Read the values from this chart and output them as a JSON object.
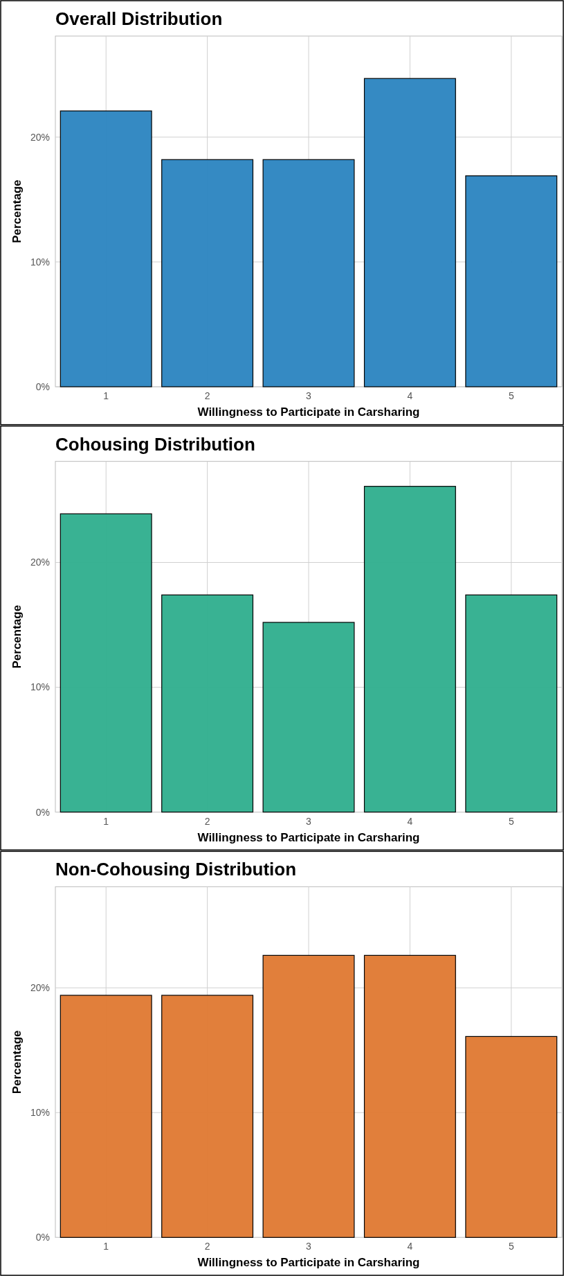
{
  "chart_data": [
    {
      "type": "bar",
      "title": "Overall Distribution",
      "xlabel": "Willingness to Participate in Carsharing",
      "ylabel": "Percentage",
      "categories": [
        "1",
        "2",
        "3",
        "4",
        "5"
      ],
      "values": [
        22.1,
        18.2,
        18.2,
        24.7,
        16.9
      ],
      "color": "#2e86c1",
      "ylim": [
        0,
        28.1
      ],
      "yticks": [
        {
          "value": 0,
          "label": "0%"
        },
        {
          "value": 10,
          "label": "10%"
        },
        {
          "value": 20,
          "label": "20%"
        }
      ],
      "grid": true
    },
    {
      "type": "bar",
      "title": "Cohousing Distribution",
      "xlabel": "Willingness to Participate in Carsharing",
      "ylabel": "Percentage",
      "categories": [
        "1",
        "2",
        "3",
        "4",
        "5"
      ],
      "values": [
        23.9,
        17.4,
        15.2,
        26.1,
        17.4
      ],
      "color": "#33b08f",
      "ylim": [
        0,
        28.1
      ],
      "yticks": [
        {
          "value": 0,
          "label": "0%"
        },
        {
          "value": 10,
          "label": "10%"
        },
        {
          "value": 20,
          "label": "20%"
        }
      ],
      "grid": true
    },
    {
      "type": "bar",
      "title": "Non-Cohousing Distribution",
      "xlabel": "Willingness to Participate in Carsharing",
      "ylabel": "Percentage",
      "categories": [
        "1",
        "2",
        "3",
        "4",
        "5"
      ],
      "values": [
        19.4,
        19.4,
        22.6,
        22.6,
        16.1
      ],
      "color": "#e07b35",
      "ylim": [
        0,
        28.1
      ],
      "yticks": [
        {
          "value": 0,
          "label": "0%"
        },
        {
          "value": 10,
          "label": "10%"
        },
        {
          "value": 20,
          "label": "20%"
        }
      ],
      "grid": true
    }
  ]
}
